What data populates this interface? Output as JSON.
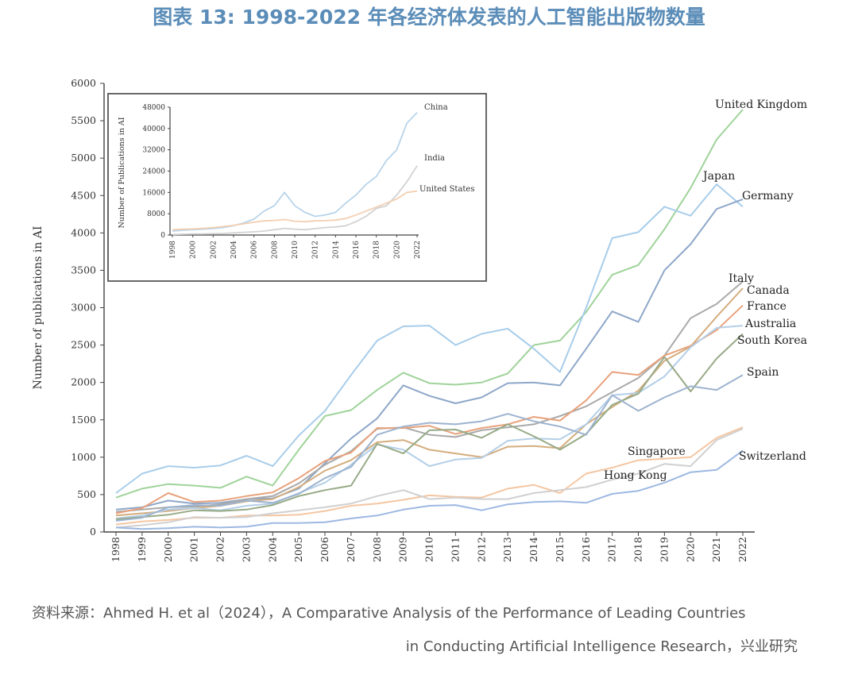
{
  "title": "图表 13: 1998-2022 年各经济体发表的人工智能出版物数量",
  "source_line1": "资料来源：Ahmed H. et al（2024），A Comparative Analysis of the Performance of Leading Countries",
  "source_line2": "in Conducting Artificial Intelligence Research，兴业研究",
  "chart_data": [
    {
      "type": "line",
      "ylabel": "Number of publications in AI",
      "xlabel": "",
      "ylim": [
        0,
        6000
      ],
      "yticks": [
        0,
        500,
        1000,
        1500,
        2000,
        2500,
        3000,
        3500,
        4000,
        4500,
        5000,
        5500,
        6000
      ],
      "x": [
        "1998",
        "1999",
        "2000",
        "2001",
        "2002",
        "2003",
        "2004",
        "2005",
        "2006",
        "2007",
        "2008",
        "2009",
        "2010",
        "2011",
        "2012",
        "2013",
        "2014",
        "2015",
        "2016",
        "2017",
        "2018",
        "2019",
        "2020",
        "2021",
        "2022"
      ],
      "series": [
        {
          "name": "United Kingdom",
          "color": "#9fd39a",
          "values": [
            460,
            580,
            640,
            620,
            590,
            740,
            620,
            1100,
            1550,
            1630,
            1900,
            2130,
            1990,
            1970,
            2000,
            2120,
            2500,
            2560,
            2940,
            3440,
            3570,
            4050,
            4600,
            5250,
            5650
          ]
        },
        {
          "name": "Japan",
          "color": "#a8cdea",
          "values": [
            520,
            780,
            880,
            860,
            890,
            1020,
            880,
            1290,
            1620,
            2100,
            2560,
            2750,
            2760,
            2500,
            2650,
            2720,
            2450,
            2140,
            3000,
            3930,
            4010,
            4350,
            4230,
            4650,
            4350
          ]
        },
        {
          "name": "Germany",
          "color": "#8ea7c9",
          "values": [
            300,
            330,
            420,
            380,
            390,
            440,
            450,
            580,
            920,
            1250,
            1520,
            1960,
            1820,
            1720,
            1800,
            1990,
            2000,
            1960,
            2450,
            2950,
            2810,
            3500,
            3850,
            4320,
            4450
          ]
        },
        {
          "name": "Italy",
          "color": "#a9a9a9",
          "values": [
            270,
            300,
            330,
            340,
            370,
            440,
            480,
            650,
            900,
            1080,
            1380,
            1400,
            1300,
            1270,
            1360,
            1400,
            1440,
            1550,
            1680,
            1870,
            2060,
            2360,
            2860,
            3050,
            3350
          ]
        },
        {
          "name": "Canada",
          "color": "#d4ad7e",
          "values": [
            220,
            250,
            280,
            320,
            350,
            410,
            440,
            600,
            820,
            960,
            1200,
            1230,
            1100,
            1050,
            1000,
            1140,
            1150,
            1120,
            1440,
            1670,
            1890,
            2290,
            2480,
            2880,
            3260
          ]
        },
        {
          "name": "France",
          "color": "#e8a27c",
          "values": [
            250,
            320,
            520,
            400,
            420,
            480,
            530,
            720,
            950,
            1060,
            1390,
            1390,
            1420,
            1310,
            1390,
            1440,
            1540,
            1490,
            1760,
            2140,
            2100,
            2360,
            2490,
            2700,
            3030
          ]
        },
        {
          "name": "Australia",
          "color": "#b4cfe8",
          "values": [
            180,
            220,
            300,
            320,
            290,
            350,
            380,
            520,
            660,
            900,
            1170,
            1100,
            880,
            970,
            990,
            1220,
            1250,
            1240,
            1440,
            1830,
            1860,
            2080,
            2470,
            2730,
            2760
          ]
        },
        {
          "name": "South Korea",
          "color": "#97aa86",
          "values": [
            170,
            200,
            230,
            290,
            280,
            300,
            360,
            480,
            560,
            620,
            1180,
            1050,
            1360,
            1370,
            1260,
            1440,
            1280,
            1100,
            1310,
            1700,
            1850,
            2340,
            1880,
            2320,
            2650
          ]
        },
        {
          "name": "Spain",
          "color": "#9db3cf",
          "values": [
            150,
            190,
            330,
            360,
            350,
            420,
            390,
            510,
            720,
            870,
            1300,
            1410,
            1460,
            1440,
            1480,
            1580,
            1480,
            1410,
            1300,
            1830,
            1620,
            1800,
            1950,
            1900,
            2100
          ]
        },
        {
          "name": "Singapore",
          "color": "#f4c6a2",
          "values": [
            100,
            140,
            160,
            190,
            190,
            220,
            220,
            230,
            280,
            350,
            380,
            430,
            490,
            470,
            460,
            580,
            630,
            520,
            780,
            860,
            960,
            980,
            1000,
            1260,
            1400
          ]
        },
        {
          "name": "Hong Kong",
          "color": "#d0d0d0",
          "values": [
            60,
            90,
            130,
            200,
            190,
            200,
            250,
            290,
            330,
            380,
            480,
            560,
            440,
            460,
            440,
            440,
            520,
            560,
            600,
            700,
            780,
            910,
            880,
            1230,
            1380
          ]
        },
        {
          "name": "Switzerland",
          "color": "#9db8e2",
          "values": [
            60,
            40,
            50,
            70,
            60,
            70,
            120,
            120,
            130,
            180,
            220,
            300,
            350,
            360,
            290,
            370,
            400,
            410,
            390,
            510,
            550,
            660,
            800,
            830,
            1090
          ]
        }
      ]
    },
    {
      "type": "line",
      "ylabel": "Number of Publications in AI",
      "xlabel": "",
      "ylim": [
        0,
        48000
      ],
      "yticks": [
        0,
        8000,
        16000,
        24000,
        32000,
        40000,
        48000
      ],
      "x": [
        "1998",
        "1999",
        "2000",
        "2001",
        "2002",
        "2003",
        "2004",
        "2005",
        "2006",
        "2007",
        "2008",
        "2009",
        "2010",
        "2011",
        "2012",
        "2013",
        "2014",
        "2015",
        "2016",
        "2017",
        "2018",
        "2019",
        "2020",
        "2021",
        "2022"
      ],
      "xtick_labels": [
        "1998",
        "2000",
        "2002",
        "2004",
        "2006",
        "2008",
        "2010",
        "2012",
        "2014",
        "2016",
        "2018",
        "2020",
        "2022"
      ],
      "series": [
        {
          "name": "China",
          "color": "#b8d4ea",
          "values": [
            1500,
            1800,
            2000,
            2200,
            2400,
            2800,
            3500,
            4500,
            6000,
            9000,
            11000,
            16000,
            11000,
            8500,
            7000,
            7500,
            8500,
            12000,
            15000,
            19000,
            22000,
            28000,
            32000,
            42000,
            46000
          ]
        },
        {
          "name": "India",
          "color": "#d2d2d2",
          "values": [
            200,
            300,
            400,
            400,
            500,
            600,
            800,
            1000,
            1200,
            1500,
            2000,
            2500,
            2200,
            2000,
            2400,
            2800,
            3000,
            3500,
            5000,
            7000,
            10000,
            11000,
            15000,
            20000,
            26000
          ]
        },
        {
          "name": "United States",
          "color": "#f3cfb2",
          "values": [
            2000,
            2200,
            2300,
            2500,
            2800,
            3200,
            3600,
            4200,
            4800,
            5300,
            5500,
            5800,
            5200,
            5000,
            5300,
            5400,
            5600,
            6200,
            7500,
            9000,
            10500,
            12000,
            13500,
            16000,
            16500
          ]
        }
      ]
    }
  ]
}
